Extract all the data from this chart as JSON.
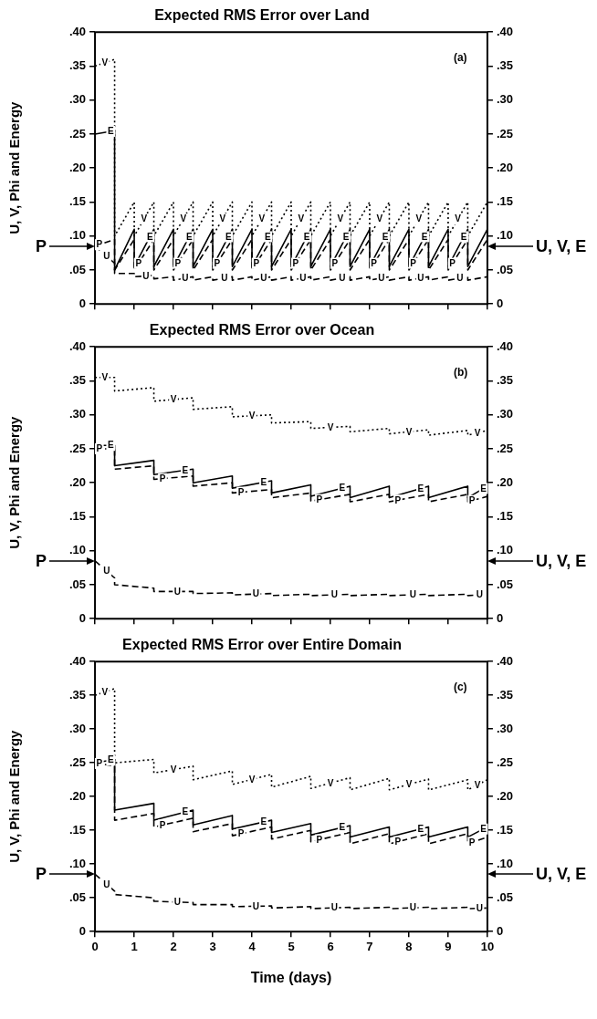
{
  "chart_data": [
    {
      "type": "line",
      "title": "Expected RMS Error over Land",
      "ylabel": "U, V, Phi and Energy",
      "xlim": [
        0,
        10
      ],
      "xticks": [
        0,
        1,
        2,
        3,
        4,
        5,
        6,
        7,
        8,
        9,
        10
      ],
      "tick_labels": "y",
      "ylim": [
        0,
        0.4
      ],
      "yticks": [
        {
          "value": 0,
          "label": "0"
        },
        {
          "value": 0.05,
          "label": ".05"
        },
        {
          "value": 0.1,
          "label": ".10"
        },
        {
          "value": 0.15,
          "label": ".15"
        },
        {
          "value": 0.2,
          "label": ".20"
        },
        {
          "value": 0.25,
          "label": ".25"
        },
        {
          "value": 0.3,
          "label": ".30"
        },
        {
          "value": 0.35,
          "label": ".35"
        },
        {
          "value": 0.4,
          "label": ".40"
        }
      ],
      "y2lim": [
        0,
        0.4
      ],
      "y2ticks": [
        {
          "value": 0,
          "label": "0"
        },
        {
          "value": 0.05,
          "label": ".05"
        },
        {
          "value": 0.1,
          "label": ".10"
        },
        {
          "value": 0.15,
          "label": ".15"
        },
        {
          "value": 0.2,
          "label": ".20"
        },
        {
          "value": 0.25,
          "label": ".25"
        },
        {
          "value": 0.3,
          "label": ".30"
        },
        {
          "value": 0.35,
          "label": ".35"
        },
        {
          "value": 0.4,
          "label": ".40"
        }
      ],
      "x": [
        0,
        0.5,
        0.5,
        1,
        1,
        1.5,
        1.5,
        2,
        2,
        2.5,
        2.5,
        3,
        3,
        3.5,
        3.5,
        4,
        4,
        4.5,
        4.5,
        5,
        5,
        5.5,
        5.5,
        6,
        6,
        6.5,
        6.5,
        7,
        7,
        7.5,
        7.5,
        8,
        8,
        8.5,
        8.5,
        9,
        9,
        9.5,
        9.5,
        10
      ],
      "series": [
        {
          "name": "V",
          "color": "#000000",
          "line_style": "dotted",
          "values": [
            0.35,
            0.36,
            0.1,
            0.15,
            0.1,
            0.15,
            0.1,
            0.15,
            0.1,
            0.15,
            0.1,
            0.15,
            0.1,
            0.15,
            0.1,
            0.15,
            0.1,
            0.15,
            0.1,
            0.15,
            0.1,
            0.15,
            0.1,
            0.15,
            0.1,
            0.15,
            0.1,
            0.15,
            0.1,
            0.15,
            0.1,
            0.15,
            0.1,
            0.15,
            0.1,
            0.15,
            0.1,
            0.15,
            0.1,
            0.15
          ]
        },
        {
          "name": "E",
          "color": "#000000",
          "line_style": "solid",
          "values": [
            0.25,
            0.255,
            0.05,
            0.11,
            0.055,
            0.11,
            0.055,
            0.11,
            0.055,
            0.11,
            0.055,
            0.11,
            0.055,
            0.11,
            0.055,
            0.11,
            0.055,
            0.11,
            0.055,
            0.11,
            0.055,
            0.11,
            0.055,
            0.11,
            0.055,
            0.11,
            0.055,
            0.11,
            0.055,
            0.11,
            0.055,
            0.11,
            0.055,
            0.11,
            0.055,
            0.11,
            0.055,
            0.11,
            0.055,
            0.11
          ]
        },
        {
          "name": "P",
          "color": "#000000",
          "line_style": "dashed",
          "values": [
            0.085,
            0.095,
            0.05,
            0.095,
            0.05,
            0.095,
            0.05,
            0.095,
            0.05,
            0.095,
            0.05,
            0.095,
            0.05,
            0.095,
            0.05,
            0.095,
            0.05,
            0.095,
            0.05,
            0.095,
            0.05,
            0.095,
            0.05,
            0.095,
            0.05,
            0.095,
            0.05,
            0.095,
            0.05,
            0.095,
            0.05,
            0.095,
            0.05,
            0.095,
            0.05,
            0.095,
            0.05,
            0.095,
            0.05,
            0.095
          ]
        },
        {
          "name": "U",
          "color": "#000000",
          "line_style": "dashed",
          "values": [
            0.085,
            0.06,
            0.045,
            0.045,
            0.04,
            0.042,
            0.037,
            0.04,
            0.035,
            0.04,
            0.035,
            0.04,
            0.035,
            0.04,
            0.035,
            0.04,
            0.035,
            0.04,
            0.035,
            0.04,
            0.035,
            0.04,
            0.035,
            0.04,
            0.035,
            0.04,
            0.035,
            0.04,
            0.035,
            0.04,
            0.035,
            0.04,
            0.035,
            0.04,
            0.035,
            0.04,
            0.035,
            0.04,
            0.035,
            0.04
          ]
        }
      ],
      "annotations": [
        "(a)",
        "P",
        "U, V, E"
      ]
    },
    {
      "type": "line",
      "title": "Expected RMS Error over Ocean",
      "ylabel": "U, V, Phi and Energy",
      "xlim": [
        0,
        10
      ],
      "xticks": [
        0,
        1,
        2,
        3,
        4,
        5,
        6,
        7,
        8,
        9,
        10
      ],
      "tick_labels": "y",
      "ylim": [
        0,
        0.4
      ],
      "yticks": [
        0,
        {
          "value": 0.05,
          "label": ".05"
        },
        {
          "value": 0.1,
          "label": ".10"
        },
        {
          "value": 0.15,
          "label": ".15"
        },
        {
          "value": 0.2,
          "label": ".20"
        },
        {
          "value": 0.25,
          "label": ".25"
        },
        {
          "value": 0.3,
          "label": ".30"
        },
        {
          "value": 0.35,
          "label": ".35"
        },
        {
          "value": 0.4,
          "label": ".40"
        }
      ],
      "y2lim": [
        0,
        0.4
      ],
      "y2ticks": [
        0,
        {
          "value": 0.05,
          "label": ".05"
        },
        {
          "value": 0.1,
          "label": ".10"
        },
        {
          "value": 0.15,
          "label": ".15"
        },
        {
          "value": 0.2,
          "label": ".20"
        },
        {
          "value": 0.25,
          "label": ".25"
        },
        {
          "value": 0.3,
          "label": ".30"
        },
        {
          "value": 0.35,
          "label": ".35"
        },
        {
          "value": 0.4,
          "label": ".40"
        }
      ],
      "x": [
        0,
        0.5,
        0.5,
        1.5,
        1.5,
        2.5,
        2.5,
        3.5,
        3.5,
        4.5,
        4.5,
        5.5,
        5.5,
        6.5,
        6.5,
        7.5,
        7.5,
        8.5,
        8.5,
        9.5,
        9.5,
        10
      ],
      "series": [
        {
          "name": "V",
          "color": "#000000",
          "line_style": "dotted",
          "values": [
            0.355,
            0.355,
            0.335,
            0.34,
            0.32,
            0.325,
            0.308,
            0.312,
            0.297,
            0.3,
            0.288,
            0.29,
            0.28,
            0.283,
            0.275,
            0.28,
            0.272,
            0.278,
            0.27,
            0.277,
            0.27,
            0.277
          ]
        },
        {
          "name": "E",
          "color": "#000000",
          "line_style": "solid",
          "values": [
            0.255,
            0.255,
            0.225,
            0.233,
            0.212,
            0.22,
            0.2,
            0.21,
            0.192,
            0.203,
            0.185,
            0.197,
            0.18,
            0.195,
            0.178,
            0.195,
            0.178,
            0.195,
            0.178,
            0.195,
            0.178,
            0.195
          ]
        },
        {
          "name": "P",
          "color": "#000000",
          "line_style": "dashed",
          "values": [
            0.25,
            0.25,
            0.22,
            0.225,
            0.205,
            0.21,
            0.195,
            0.2,
            0.185,
            0.19,
            0.178,
            0.185,
            0.173,
            0.183,
            0.172,
            0.183,
            0.172,
            0.183,
            0.172,
            0.183,
            0.172,
            0.18
          ]
        },
        {
          "name": "U",
          "color": "#000000",
          "line_style": "dashed",
          "values": [
            0.085,
            0.06,
            0.05,
            0.045,
            0.04,
            0.04,
            0.037,
            0.038,
            0.035,
            0.037,
            0.034,
            0.036,
            0.034,
            0.036,
            0.034,
            0.036,
            0.034,
            0.036,
            0.034,
            0.036,
            0.034,
            0.036
          ]
        }
      ],
      "annotations": [
        "(b)",
        "P",
        "U, V, E"
      ]
    },
    {
      "type": "line",
      "title": "Expected RMS Error over Entire Domain",
      "xlabel": "Time (days)",
      "ylabel": "U, V, Phi and Energy",
      "xlim": [
        0,
        10
      ],
      "xticks": [
        0,
        1,
        2,
        3,
        4,
        5,
        6,
        7,
        8,
        9,
        10
      ],
      "ylim": [
        0,
        0.4
      ],
      "yticks": [
        0,
        {
          "value": 0.05,
          "label": ".05"
        },
        {
          "value": 0.1,
          "label": ".10"
        },
        {
          "value": 0.15,
          "label": ".15"
        },
        {
          "value": 0.2,
          "label": ".20"
        },
        {
          "value": 0.25,
          "label": ".25"
        },
        {
          "value": 0.3,
          "label": ".30"
        },
        {
          "value": 0.35,
          "label": ".35"
        },
        {
          "value": 0.4,
          "label": ".40"
        }
      ],
      "y2lim": [
        0,
        0.4
      ],
      "y2ticks": [
        0,
        {
          "value": 0.05,
          "label": ".05"
        },
        {
          "value": 0.1,
          "label": ".10"
        },
        {
          "value": 0.15,
          "label": ".15"
        },
        {
          "value": 0.2,
          "label": ".20"
        },
        {
          "value": 0.25,
          "label": ".25"
        },
        {
          "value": 0.3,
          "label": ".30"
        },
        {
          "value": 0.35,
          "label": ".35"
        },
        {
          "value": 0.4,
          "label": ".40"
        }
      ],
      "x": [
        0,
        0.5,
        0.5,
        1.5,
        1.5,
        2.5,
        2.5,
        3.5,
        3.5,
        4.5,
        4.5,
        5.5,
        5.5,
        6.5,
        6.5,
        7.5,
        7.5,
        8.5,
        8.5,
        9.5,
        9.5,
        10
      ],
      "series": [
        {
          "name": "V",
          "color": "#000000",
          "line_style": "dotted",
          "values": [
            0.35,
            0.36,
            0.25,
            0.255,
            0.235,
            0.245,
            0.225,
            0.238,
            0.218,
            0.233,
            0.214,
            0.23,
            0.212,
            0.228,
            0.21,
            0.227,
            0.21,
            0.226,
            0.21,
            0.225,
            0.21,
            0.225
          ]
        },
        {
          "name": "E",
          "color": "#000000",
          "line_style": "solid",
          "values": [
            0.25,
            0.255,
            0.18,
            0.19,
            0.165,
            0.18,
            0.158,
            0.172,
            0.152,
            0.165,
            0.147,
            0.16,
            0.143,
            0.157,
            0.14,
            0.155,
            0.14,
            0.155,
            0.14,
            0.155,
            0.14,
            0.155
          ]
        },
        {
          "name": "P",
          "color": "#000000",
          "line_style": "dashed",
          "values": [
            0.25,
            0.245,
            0.165,
            0.175,
            0.155,
            0.168,
            0.148,
            0.16,
            0.142,
            0.155,
            0.137,
            0.15,
            0.133,
            0.147,
            0.13,
            0.145,
            0.13,
            0.145,
            0.13,
            0.145,
            0.13,
            0.14
          ]
        },
        {
          "name": "U",
          "color": "#000000",
          "line_style": "dashed",
          "values": [
            0.085,
            0.06,
            0.055,
            0.05,
            0.045,
            0.043,
            0.04,
            0.04,
            0.037,
            0.038,
            0.035,
            0.037,
            0.034,
            0.036,
            0.034,
            0.036,
            0.034,
            0.036,
            0.034,
            0.036,
            0.034,
            0.035
          ]
        }
      ],
      "annotations": [
        "(c)",
        "P",
        "U, V, E"
      ]
    }
  ]
}
